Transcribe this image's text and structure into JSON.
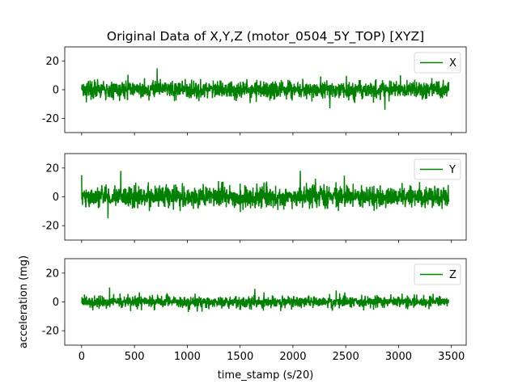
{
  "chart_data": {
    "type": "line",
    "title": "Original Data of X,Y,Z (motor_0504_5Y_TOP) [XYZ]",
    "xlabel": "time_stamp (s/20)",
    "ylabel": "acceleration (mg)",
    "line_color": "#008000",
    "xlim": [
      -160,
      3640
    ],
    "xticks": [
      0,
      500,
      1000,
      1500,
      2000,
      2500,
      3000,
      3500
    ],
    "grid": false,
    "shared_x": true,
    "subplots": [
      {
        "series_name": "X",
        "legend_position": "top-right",
        "ylim": [
          -30,
          30
        ],
        "yticks": [
          -20,
          0,
          20
        ],
        "x_range": [
          0,
          3475
        ],
        "approx_mean": 0,
        "approx_range": [
          -14,
          15
        ],
        "notable_points": [
          {
            "x": 715,
            "y": 15
          },
          {
            "x": 2350,
            "y": -13
          },
          {
            "x": 2870,
            "y": -14
          }
        ]
      },
      {
        "series_name": "Y",
        "legend_position": "top-right",
        "ylim": [
          -30,
          30
        ],
        "yticks": [
          -20,
          0,
          20
        ],
        "x_range": [
          0,
          3475
        ],
        "approx_mean": 0,
        "approx_range": [
          -15,
          18
        ],
        "notable_points": [
          {
            "x": 0,
            "y": 15
          },
          {
            "x": 370,
            "y": 18
          },
          {
            "x": 2070,
            "y": 18
          },
          {
            "x": 250,
            "y": -15
          }
        ]
      },
      {
        "series_name": "Z",
        "legend_position": "top-right",
        "ylim": [
          -30,
          30
        ],
        "yticks": [
          -20,
          0,
          20
        ],
        "x_range": [
          0,
          3475
        ],
        "approx_mean": 0,
        "approx_range": [
          -8,
          10
        ],
        "notable_points": [
          {
            "x": 265,
            "y": 10
          },
          {
            "x": 1640,
            "y": 9
          },
          {
            "x": 2410,
            "y": 8
          }
        ]
      }
    ]
  }
}
